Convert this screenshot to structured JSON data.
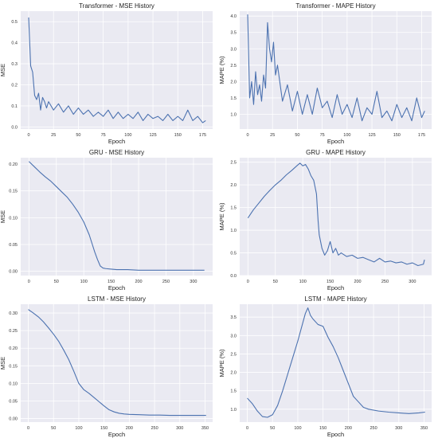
{
  "style": {
    "plot_bg": "#eaeaf2",
    "line_color": "#4c72b0",
    "grid_color": "#ffffff"
  },
  "chart_data": [
    {
      "type": "line",
      "title": "Transformer - MSE History",
      "xlabel": "Epoch",
      "ylabel": "MSE",
      "xlim": [
        -8,
        185
      ],
      "ylim": [
        -0.01,
        0.55
      ],
      "xticks": [
        0,
        25,
        50,
        75,
        100,
        125,
        150,
        175
      ],
      "yticks": [
        0.0,
        0.1,
        0.2,
        0.3,
        0.4,
        0.5
      ],
      "ytick_decimals": 1,
      "grid": true,
      "series": [
        {
          "x": [
            0,
            2,
            4,
            6,
            8,
            10,
            12,
            14,
            16,
            18,
            20,
            25,
            30,
            35,
            40,
            45,
            50,
            55,
            60,
            65,
            70,
            75,
            80,
            85,
            90,
            95,
            100,
            105,
            110,
            115,
            120,
            125,
            130,
            135,
            140,
            145,
            150,
            155,
            160,
            165,
            170,
            175,
            178
          ],
          "y": [
            0.52,
            0.29,
            0.26,
            0.15,
            0.13,
            0.16,
            0.08,
            0.14,
            0.12,
            0.09,
            0.12,
            0.08,
            0.11,
            0.07,
            0.1,
            0.06,
            0.09,
            0.06,
            0.08,
            0.05,
            0.07,
            0.05,
            0.08,
            0.04,
            0.07,
            0.04,
            0.06,
            0.04,
            0.07,
            0.03,
            0.06,
            0.04,
            0.05,
            0.03,
            0.06,
            0.03,
            0.05,
            0.03,
            0.08,
            0.03,
            0.05,
            0.02,
            0.03
          ]
        }
      ]
    },
    {
      "type": "line",
      "title": "Transformer - MAPE History",
      "xlabel": "Epoch",
      "ylabel": "MAPE (%)",
      "xlim": [
        -8,
        185
      ],
      "ylim": [
        0.55,
        4.15
      ],
      "xticks": [
        0,
        25,
        50,
        75,
        100,
        125,
        150,
        175
      ],
      "yticks": [
        1.0,
        1.5,
        2.0,
        2.5,
        3.0,
        3.5,
        4.0
      ],
      "ytick_decimals": 1,
      "grid": true,
      "series": [
        {
          "x": [
            0,
            2,
            4,
            6,
            8,
            10,
            12,
            14,
            16,
            18,
            20,
            22,
            24,
            26,
            28,
            30,
            35,
            40,
            45,
            50,
            55,
            60,
            65,
            70,
            75,
            80,
            85,
            90,
            95,
            100,
            105,
            110,
            115,
            120,
            125,
            130,
            135,
            140,
            145,
            150,
            155,
            160,
            165,
            170,
            175,
            178
          ],
          "y": [
            4.05,
            1.5,
            2.0,
            1.3,
            2.3,
            1.6,
            1.9,
            1.4,
            2.2,
            1.8,
            3.8,
            3.0,
            2.6,
            3.2,
            2.2,
            2.5,
            1.4,
            1.9,
            1.1,
            1.7,
            1.0,
            1.6,
            1.0,
            1.8,
            1.2,
            1.4,
            0.9,
            1.6,
            1.0,
            1.3,
            0.9,
            1.5,
            0.8,
            1.2,
            1.0,
            1.7,
            0.9,
            1.1,
            0.8,
            1.3,
            0.9,
            1.2,
            0.8,
            1.5,
            0.9,
            1.1
          ]
        }
      ]
    },
    {
      "type": "line",
      "title": "GRU - MSE History",
      "xlabel": "Epoch",
      "ylabel": "MSE",
      "xlim": [
        -15,
        335
      ],
      "ylim": [
        -0.008,
        0.212
      ],
      "xticks": [
        0,
        50,
        100,
        150,
        200,
        250,
        300
      ],
      "yticks": [
        0.0,
        0.05,
        0.1,
        0.15,
        0.2
      ],
      "ytick_decimals": 2,
      "grid": true,
      "series": [
        {
          "x": [
            0,
            10,
            20,
            30,
            40,
            50,
            60,
            70,
            80,
            90,
            100,
            110,
            115,
            120,
            125,
            130,
            135,
            140,
            150,
            160,
            180,
            200,
            220,
            240,
            260,
            280,
            300,
            320
          ],
          "y": [
            0.205,
            0.195,
            0.185,
            0.176,
            0.168,
            0.158,
            0.148,
            0.138,
            0.125,
            0.11,
            0.092,
            0.068,
            0.052,
            0.036,
            0.022,
            0.01,
            0.006,
            0.005,
            0.004,
            0.003,
            0.003,
            0.002,
            0.002,
            0.002,
            0.002,
            0.002,
            0.002,
            0.002
          ]
        }
      ]
    },
    {
      "type": "line",
      "title": "GRU - MAPE History",
      "xlabel": "Epoch",
      "ylabel": "MAPE (%)",
      "xlim": [
        -15,
        335
      ],
      "ylim": [
        0.0,
        2.6
      ],
      "xticks": [
        0,
        50,
        100,
        150,
        200,
        250,
        300
      ],
      "yticks": [
        0.0,
        0.5,
        1.0,
        1.5,
        2.0,
        2.5
      ],
      "ytick_decimals": 1,
      "grid": true,
      "series": [
        {
          "x": [
            0,
            10,
            20,
            30,
            40,
            50,
            60,
            70,
            80,
            90,
            95,
            100,
            105,
            110,
            115,
            120,
            125,
            128,
            130,
            135,
            140,
            145,
            150,
            155,
            160,
            165,
            170,
            180,
            190,
            200,
            210,
            220,
            230,
            240,
            250,
            260,
            270,
            280,
            290,
            300,
            310,
            320,
            322
          ],
          "y": [
            1.27,
            1.45,
            1.6,
            1.75,
            1.88,
            2.0,
            2.1,
            2.22,
            2.32,
            2.43,
            2.48,
            2.42,
            2.45,
            2.35,
            2.2,
            2.1,
            1.8,
            1.2,
            0.9,
            0.6,
            0.45,
            0.55,
            0.75,
            0.5,
            0.6,
            0.45,
            0.5,
            0.42,
            0.45,
            0.38,
            0.4,
            0.35,
            0.3,
            0.38,
            0.3,
            0.32,
            0.28,
            0.3,
            0.25,
            0.28,
            0.22,
            0.25,
            0.35
          ]
        }
      ]
    },
    {
      "type": "line",
      "title": "LSTM - MSE History",
      "xlabel": "Epoch",
      "ylabel": "MSE",
      "xlim": [
        -15,
        365
      ],
      "ylim": [
        -0.01,
        0.325
      ],
      "xticks": [
        0,
        50,
        100,
        150,
        200,
        250,
        300,
        350
      ],
      "yticks": [
        0.0,
        0.05,
        0.1,
        0.15,
        0.2,
        0.25,
        0.3
      ],
      "ytick_decimals": 2,
      "grid": true,
      "series": [
        {
          "x": [
            0,
            10,
            20,
            30,
            40,
            50,
            60,
            70,
            80,
            90,
            100,
            110,
            120,
            130,
            140,
            150,
            160,
            170,
            180,
            190,
            200,
            220,
            240,
            260,
            280,
            300,
            320,
            340,
            352
          ],
          "y": [
            0.31,
            0.3,
            0.289,
            0.275,
            0.258,
            0.24,
            0.22,
            0.195,
            0.168,
            0.135,
            0.1,
            0.082,
            0.072,
            0.06,
            0.048,
            0.036,
            0.025,
            0.019,
            0.015,
            0.013,
            0.012,
            0.011,
            0.01,
            0.01,
            0.009,
            0.009,
            0.009,
            0.009,
            0.009
          ]
        }
      ]
    },
    {
      "type": "line",
      "title": "LSTM - MAPE History",
      "xlabel": "Epoch",
      "ylabel": "MAPE (%)",
      "xlim": [
        -15,
        365
      ],
      "ylim": [
        0.65,
        3.85
      ],
      "xticks": [
        0,
        50,
        100,
        150,
        200,
        250,
        300,
        350
      ],
      "yticks": [
        1.0,
        1.5,
        2.0,
        2.5,
        3.0,
        3.5
      ],
      "ytick_decimals": 1,
      "grid": true,
      "series": [
        {
          "x": [
            0,
            10,
            20,
            30,
            40,
            50,
            60,
            70,
            80,
            90,
            100,
            110,
            115,
            120,
            125,
            130,
            140,
            150,
            160,
            170,
            180,
            190,
            200,
            210,
            220,
            230,
            240,
            260,
            280,
            300,
            320,
            340,
            352
          ],
          "y": [
            1.3,
            1.15,
            0.95,
            0.8,
            0.78,
            0.85,
            1.1,
            1.5,
            1.95,
            2.4,
            2.85,
            3.35,
            3.6,
            3.75,
            3.55,
            3.45,
            3.3,
            3.25,
            2.95,
            2.7,
            2.4,
            2.05,
            1.7,
            1.35,
            1.2,
            1.05,
            1.0,
            0.95,
            0.92,
            0.9,
            0.88,
            0.9,
            0.92
          ]
        }
      ]
    }
  ]
}
